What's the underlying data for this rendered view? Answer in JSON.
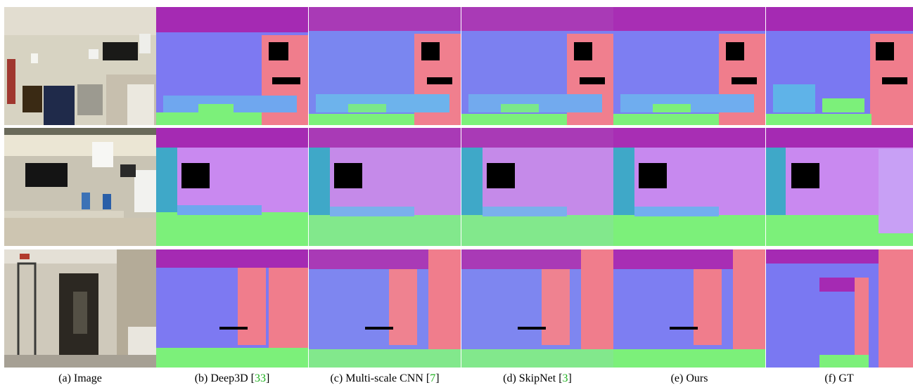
{
  "figure": {
    "columns": [
      {
        "prefix": "(a) Image",
        "ref": "",
        "close": ""
      },
      {
        "prefix": "(b) Deep3D [",
        "ref": "33",
        "close": "]"
      },
      {
        "prefix": "(c) Multi-scale CNN [",
        "ref": "7",
        "close": "]"
      },
      {
        "prefix": "(d) SkipNet [",
        "ref": "3",
        "close": "]"
      },
      {
        "prefix": "(e) Ours",
        "ref": "",
        "close": ""
      },
      {
        "prefix": "(f) GT",
        "ref": "",
        "close": ""
      }
    ],
    "colors": {
      "normal_blue": "#7d79f2",
      "normal_pink": "#f07d8c",
      "normal_magenta": "#a52ab3",
      "normal_green": "#7cf07a",
      "normal_lilac": "#c989f0",
      "normal_teal": "#3fa8c8",
      "citation_green": "#1db01d"
    }
  }
}
